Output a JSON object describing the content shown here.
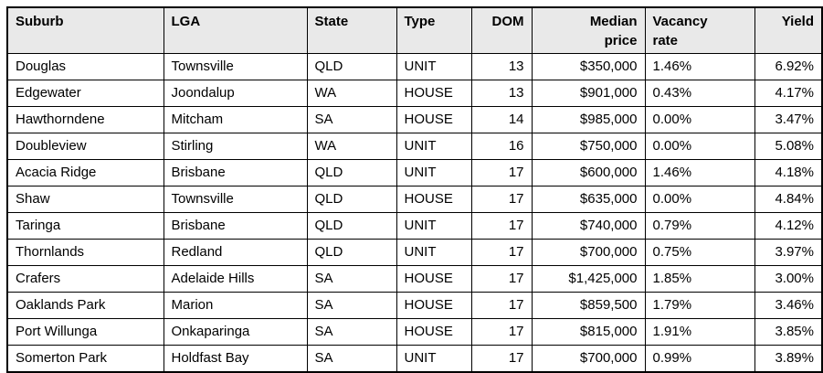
{
  "table": {
    "columns": [
      {
        "label": "Suburb",
        "align": "left"
      },
      {
        "label": "LGA",
        "align": "left"
      },
      {
        "label": "State",
        "align": "left"
      },
      {
        "label": "Type",
        "align": "left"
      },
      {
        "label": "DOM",
        "align": "right"
      },
      {
        "label": "Median\nprice",
        "align": "right"
      },
      {
        "label": "Vacancy\nrate",
        "align": "left"
      },
      {
        "label": "Yield",
        "align": "right"
      }
    ],
    "rows": [
      [
        "Douglas",
        "Townsville",
        "QLD",
        "UNIT",
        "13",
        "$350,000",
        "1.46%",
        "6.92%"
      ],
      [
        "Edgewater",
        "Joondalup",
        "WA",
        "HOUSE",
        "13",
        "$901,000",
        "0.43%",
        "4.17%"
      ],
      [
        "Hawthorndene",
        "Mitcham",
        "SA",
        "HOUSE",
        "14",
        "$985,000",
        "0.00%",
        "3.47%"
      ],
      [
        "Doubleview",
        "Stirling",
        "WA",
        "UNIT",
        "16",
        "$750,000",
        "0.00%",
        "5.08%"
      ],
      [
        "Acacia Ridge",
        "Brisbane",
        "QLD",
        "UNIT",
        "17",
        "$600,000",
        "1.46%",
        "4.18%"
      ],
      [
        "Shaw",
        "Townsville",
        "QLD",
        "HOUSE",
        "17",
        "$635,000",
        "0.00%",
        "4.84%"
      ],
      [
        "Taringa",
        "Brisbane",
        "QLD",
        "UNIT",
        "17",
        "$740,000",
        "0.79%",
        "4.12%"
      ],
      [
        "Thornlands",
        "Redland",
        "QLD",
        "UNIT",
        "17",
        "$700,000",
        "0.75%",
        "3.97%"
      ],
      [
        "Crafers",
        "Adelaide Hills",
        "SA",
        "HOUSE",
        "17",
        "$1,425,000",
        "1.85%",
        "3.00%"
      ],
      [
        "Oaklands Park",
        "Marion",
        "SA",
        "HOUSE",
        "17",
        "$859,500",
        "1.79%",
        "3.46%"
      ],
      [
        "Port Willunga",
        "Onkaparinga",
        "SA",
        "HOUSE",
        "17",
        "$815,000",
        "1.91%",
        "3.85%"
      ],
      [
        "Somerton Park",
        "Holdfast Bay",
        "SA",
        "UNIT",
        "17",
        "$700,000",
        "0.99%",
        "3.89%"
      ]
    ]
  },
  "colors": {
    "header_bg": "#e9e9e9",
    "border": "#000000",
    "row_bg": "#ffffff",
    "text": "#000000"
  }
}
